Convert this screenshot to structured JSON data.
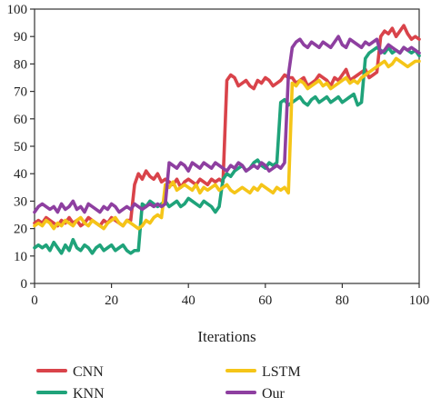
{
  "chart_data": {
    "type": "line",
    "xlabel": "Iterations",
    "ylabel": "",
    "xlim": [
      0,
      100
    ],
    "ylim": [
      0,
      100
    ],
    "x_ticks": [
      0,
      20,
      40,
      60,
      80,
      100
    ],
    "y_ticks": [
      0,
      10,
      20,
      30,
      40,
      50,
      60,
      70,
      80,
      90,
      100
    ],
    "grid": false,
    "legend_position": "bottom",
    "series": [
      {
        "name": "CNN",
        "color": "#d9434a",
        "x": [
          0,
          1,
          2,
          3,
          4,
          5,
          6,
          7,
          8,
          9,
          10,
          11,
          12,
          13,
          14,
          15,
          16,
          17,
          18,
          19,
          20,
          21,
          22,
          23,
          24,
          25,
          26,
          27,
          28,
          29,
          30,
          31,
          32,
          33,
          34,
          35,
          36,
          37,
          38,
          39,
          40,
          41,
          42,
          43,
          44,
          45,
          46,
          47,
          48,
          49,
          50,
          51,
          52,
          53,
          54,
          55,
          56,
          57,
          58,
          59,
          60,
          61,
          62,
          63,
          64,
          65,
          66,
          67,
          68,
          69,
          70,
          71,
          72,
          73,
          74,
          75,
          76,
          77,
          78,
          79,
          80,
          81,
          82,
          83,
          84,
          85,
          86,
          87,
          88,
          89,
          90,
          91,
          92,
          93,
          94,
          95,
          96,
          97,
          98,
          99,
          100
        ],
        "y": [
          22,
          23,
          22,
          24,
          23,
          22,
          21,
          23,
          22,
          24,
          22,
          23,
          21,
          22,
          24,
          23,
          22,
          21,
          23,
          22,
          24,
          23,
          22,
          21,
          23,
          23,
          36,
          40,
          38,
          41,
          39,
          38,
          40,
          37,
          38,
          37,
          36,
          38,
          35,
          37,
          38,
          37,
          36,
          38,
          37,
          36,
          38,
          37,
          38,
          37,
          74,
          76,
          75,
          72,
          73,
          74,
          72,
          71,
          74,
          73,
          75,
          74,
          72,
          73,
          74,
          76,
          75,
          75,
          73,
          74,
          75,
          72,
          73,
          74,
          76,
          75,
          74,
          72,
          75,
          74,
          76,
          78,
          74,
          75,
          76,
          77,
          78,
          75,
          76,
          77,
          90,
          92,
          91,
          93,
          90,
          92,
          94,
          91,
          89,
          90,
          89
        ]
      },
      {
        "name": "KNN",
        "color": "#1fa37a",
        "x": [
          0,
          1,
          2,
          3,
          4,
          5,
          6,
          7,
          8,
          9,
          10,
          11,
          12,
          13,
          14,
          15,
          16,
          17,
          18,
          19,
          20,
          21,
          22,
          23,
          24,
          25,
          26,
          27,
          28,
          29,
          30,
          31,
          32,
          33,
          34,
          35,
          36,
          37,
          38,
          39,
          40,
          41,
          42,
          43,
          44,
          45,
          46,
          47,
          48,
          49,
          50,
          51,
          52,
          53,
          54,
          55,
          56,
          57,
          58,
          59,
          60,
          61,
          62,
          63,
          64,
          65,
          66,
          67,
          68,
          69,
          70,
          71,
          72,
          73,
          74,
          75,
          76,
          77,
          78,
          79,
          80,
          81,
          82,
          83,
          84,
          85,
          86,
          87,
          88,
          89,
          90,
          91,
          92,
          93,
          94,
          95,
          96,
          97,
          98,
          99,
          100
        ],
        "y": [
          13,
          14,
          13,
          14,
          12,
          15,
          13,
          11,
          14,
          12,
          16,
          13,
          12,
          14,
          13,
          11,
          13,
          14,
          12,
          13,
          14,
          12,
          13,
          14,
          12,
          11,
          12,
          12,
          29,
          28,
          30,
          29,
          28,
          29,
          30,
          28,
          29,
          30,
          28,
          29,
          31,
          30,
          29,
          28,
          30,
          29,
          28,
          26,
          28,
          38,
          40,
          39,
          41,
          42,
          43,
          41,
          42,
          44,
          45,
          43,
          42,
          44,
          43,
          44,
          66,
          67,
          65,
          66,
          67,
          68,
          66,
          65,
          67,
          68,
          66,
          67,
          68,
          66,
          67,
          68,
          66,
          67,
          68,
          69,
          65,
          66,
          82,
          84,
          85,
          86,
          85,
          84,
          86,
          84,
          85,
          84,
          86,
          85,
          84,
          85,
          83
        ]
      },
      {
        "name": "LSTM",
        "color": "#f5c518",
        "x": [
          0,
          1,
          2,
          3,
          4,
          5,
          6,
          7,
          8,
          9,
          10,
          11,
          12,
          13,
          14,
          15,
          16,
          17,
          18,
          19,
          20,
          21,
          22,
          23,
          24,
          25,
          26,
          27,
          28,
          29,
          30,
          31,
          32,
          33,
          34,
          35,
          36,
          37,
          38,
          39,
          40,
          41,
          42,
          43,
          44,
          45,
          46,
          47,
          48,
          49,
          50,
          51,
          52,
          53,
          54,
          55,
          56,
          57,
          58,
          59,
          60,
          61,
          62,
          63,
          64,
          65,
          66,
          67,
          68,
          69,
          70,
          71,
          72,
          73,
          74,
          75,
          76,
          77,
          78,
          79,
          80,
          81,
          82,
          83,
          84,
          85,
          86,
          87,
          88,
          89,
          90,
          91,
          92,
          93,
          94,
          95,
          96,
          97,
          98,
          99,
          100
        ],
        "y": [
          21,
          22,
          21,
          23,
          22,
          20,
          22,
          21,
          23,
          22,
          21,
          23,
          24,
          22,
          21,
          23,
          22,
          21,
          20,
          22,
          23,
          24,
          22,
          21,
          23,
          22,
          21,
          20,
          21,
          23,
          22,
          24,
          25,
          24,
          36,
          35,
          37,
          34,
          35,
          36,
          35,
          34,
          36,
          33,
          35,
          34,
          35,
          36,
          34,
          35,
          36,
          34,
          33,
          34,
          35,
          34,
          33,
          35,
          34,
          36,
          35,
          34,
          33,
          35,
          34,
          35,
          33,
          73,
          72,
          74,
          73,
          71,
          72,
          73,
          74,
          72,
          73,
          71,
          72,
          73,
          74,
          75,
          73,
          74,
          73,
          75,
          76,
          77,
          78,
          79,
          80,
          81,
          79,
          80,
          82,
          81,
          80,
          79,
          80,
          81,
          81
        ]
      },
      {
        "name": "Our",
        "color": "#8e3fa0",
        "x": [
          0,
          1,
          2,
          3,
          4,
          5,
          6,
          7,
          8,
          9,
          10,
          11,
          12,
          13,
          14,
          15,
          16,
          17,
          18,
          19,
          20,
          21,
          22,
          23,
          24,
          25,
          26,
          27,
          28,
          29,
          30,
          31,
          32,
          33,
          34,
          35,
          36,
          37,
          38,
          39,
          40,
          41,
          42,
          43,
          44,
          45,
          46,
          47,
          48,
          49,
          50,
          51,
          52,
          53,
          54,
          55,
          56,
          57,
          58,
          59,
          60,
          61,
          62,
          63,
          64,
          65,
          66,
          67,
          68,
          69,
          70,
          71,
          72,
          73,
          74,
          75,
          76,
          77,
          78,
          79,
          80,
          81,
          82,
          83,
          84,
          85,
          86,
          87,
          88,
          89,
          90,
          91,
          92,
          93,
          94,
          95,
          96,
          97,
          98,
          99,
          100
        ],
        "y": [
          26,
          28,
          29,
          28,
          27,
          28,
          26,
          29,
          27,
          28,
          30,
          27,
          28,
          26,
          29,
          28,
          27,
          26,
          28,
          27,
          29,
          28,
          26,
          27,
          28,
          27,
          29,
          28,
          27,
          28,
          29,
          28,
          29,
          28,
          29,
          44,
          43,
          42,
          44,
          43,
          41,
          44,
          43,
          42,
          44,
          43,
          42,
          44,
          43,
          42,
          41,
          43,
          42,
          44,
          43,
          41,
          42,
          43,
          42,
          44,
          43,
          41,
          42,
          43,
          42,
          44,
          76,
          86,
          88,
          89,
          87,
          86,
          88,
          87,
          86,
          88,
          87,
          86,
          88,
          90,
          87,
          86,
          89,
          88,
          87,
          86,
          88,
          87,
          88,
          89,
          84,
          85,
          87,
          86,
          85,
          84,
          86,
          85,
          86,
          85,
          84
        ]
      }
    ]
  }
}
